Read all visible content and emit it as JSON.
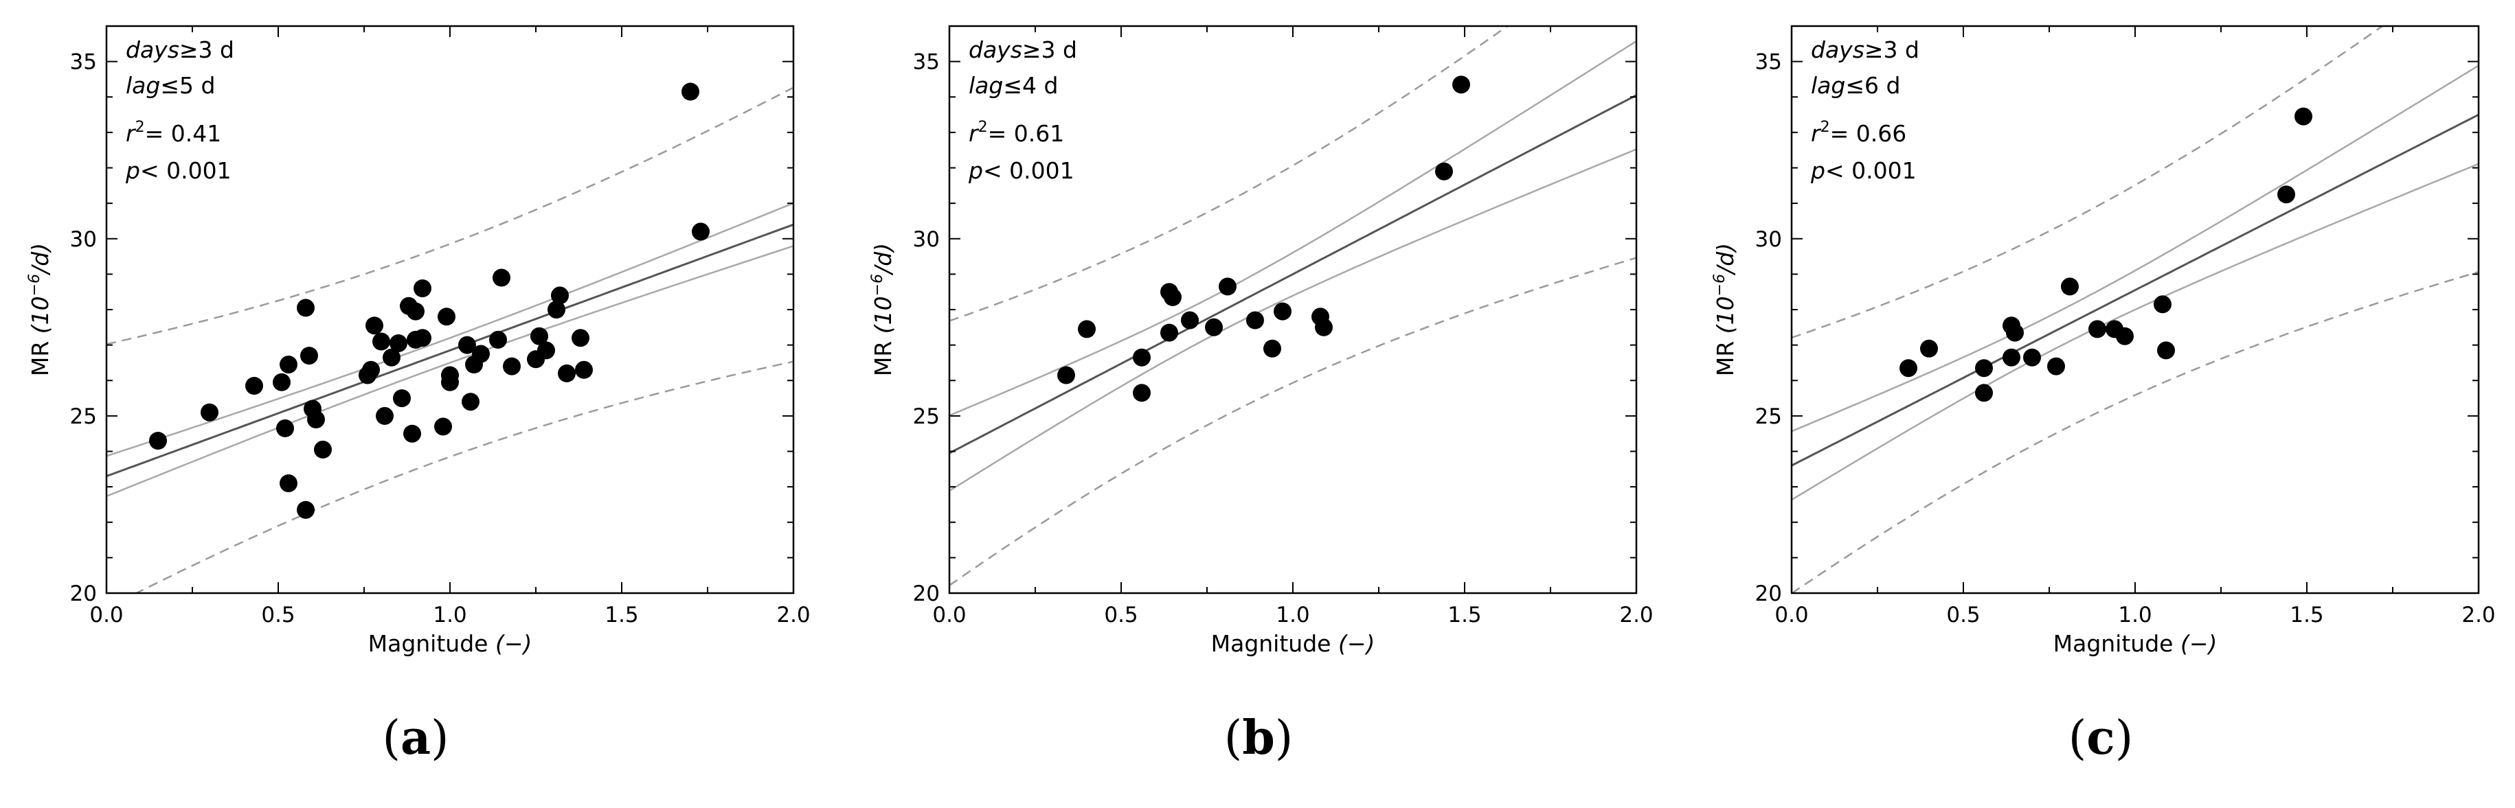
{
  "chart_data": [
    {
      "type": "scatter",
      "panel_label": "a",
      "xlabel": "Magnitude",
      "xlabel_unit": "(−)",
      "ylabel": "MR",
      "ylabel_unit": "(10",
      "ylabel_unit_exp": "−6",
      "ylabel_unit_end": "/d)",
      "xlim": [
        0.0,
        2.0
      ],
      "ylim": [
        20,
        36
      ],
      "xticks": [
        "0.0",
        "0.5",
        "1.0",
        "1.5",
        "2.0"
      ],
      "yticks": [
        "20",
        "25",
        "30",
        "35"
      ],
      "annotations": {
        "days_var": "days",
        "days_rel": "≥3 d",
        "lag_var": "lag",
        "lag_rel": "≤5 d",
        "r2_label": "r",
        "r2_exp": "2",
        "r2_value": "= 0.41",
        "p_text": "p< 0.001"
      },
      "fit": {
        "intercept": 23.3,
        "slope": 3.55,
        "x_mean": 0.95,
        "ci_half": 0.35,
        "ci_k": 1.8,
        "pi_half": 3.0,
        "pi_k": 0.6
      },
      "points": [
        [
          0.15,
          24.3
        ],
        [
          0.3,
          25.1
        ],
        [
          0.43,
          25.85
        ],
        [
          0.51,
          25.95
        ],
        [
          0.52,
          24.65
        ],
        [
          0.53,
          26.45
        ],
        [
          0.53,
          23.1
        ],
        [
          0.58,
          28.05
        ],
        [
          0.58,
          22.35
        ],
        [
          0.59,
          26.7
        ],
        [
          0.6,
          25.2
        ],
        [
          0.61,
          24.9
        ],
        [
          0.63,
          24.05
        ],
        [
          0.76,
          26.15
        ],
        [
          0.77,
          26.3
        ],
        [
          0.78,
          27.55
        ],
        [
          0.8,
          27.1
        ],
        [
          0.81,
          25.0
        ],
        [
          0.83,
          26.65
        ],
        [
          0.85,
          27.05
        ],
        [
          0.86,
          25.5
        ],
        [
          0.88,
          28.1
        ],
        [
          0.89,
          24.5
        ],
        [
          0.9,
          27.95
        ],
        [
          0.9,
          27.15
        ],
        [
          0.92,
          28.6
        ],
        [
          0.92,
          27.2
        ],
        [
          0.98,
          24.7
        ],
        [
          0.99,
          27.8
        ],
        [
          1.0,
          25.95
        ],
        [
          1.0,
          26.15
        ],
        [
          1.05,
          27.0
        ],
        [
          1.06,
          25.4
        ],
        [
          1.07,
          26.45
        ],
        [
          1.09,
          26.75
        ],
        [
          1.14,
          27.15
        ],
        [
          1.15,
          28.9
        ],
        [
          1.18,
          26.4
        ],
        [
          1.25,
          26.6
        ],
        [
          1.26,
          27.25
        ],
        [
          1.28,
          26.85
        ],
        [
          1.31,
          28.0
        ],
        [
          1.32,
          28.4
        ],
        [
          1.34,
          26.2
        ],
        [
          1.38,
          27.2
        ],
        [
          1.39,
          26.3
        ],
        [
          1.7,
          34.15
        ],
        [
          1.73,
          30.2
        ]
      ]
    },
    {
      "type": "scatter",
      "panel_label": "b",
      "xlabel": "Magnitude",
      "xlabel_unit": "(−)",
      "ylabel": "MR",
      "ylabel_unit": "(10",
      "ylabel_unit_exp": "−6",
      "ylabel_unit_end": "/d)",
      "xlim": [
        0.0,
        2.0
      ],
      "ylim": [
        20,
        36
      ],
      "xticks": [
        "0.0",
        "0.5",
        "1.0",
        "1.5",
        "2.0"
      ],
      "yticks": [
        "20",
        "25",
        "30",
        "35"
      ],
      "annotations": {
        "days_var": "days",
        "days_rel": "≥3 d",
        "lag_var": "lag",
        "lag_rel": "≤4 d",
        "r2_label": "r",
        "r2_exp": "2",
        "r2_value": "= 0.61",
        "p_text": "p< 0.001"
      },
      "fit": {
        "intercept": 23.95,
        "slope": 5.05,
        "x_mean": 0.78,
        "ci_half": 0.55,
        "ci_k": 4.5,
        "pi_half": 3.0,
        "pi_k": 0.9
      },
      "points": [
        [
          0.34,
          26.15
        ],
        [
          0.4,
          27.45
        ],
        [
          0.56,
          26.65
        ],
        [
          0.56,
          25.65
        ],
        [
          0.64,
          28.5
        ],
        [
          0.64,
          27.35
        ],
        [
          0.65,
          28.35
        ],
        [
          0.7,
          27.7
        ],
        [
          0.77,
          27.5
        ],
        [
          0.81,
          28.65
        ],
        [
          0.89,
          27.7
        ],
        [
          0.94,
          26.9
        ],
        [
          0.97,
          27.95
        ],
        [
          1.08,
          27.8
        ],
        [
          1.09,
          27.5
        ],
        [
          1.44,
          31.9
        ],
        [
          1.49,
          34.35
        ]
      ]
    },
    {
      "type": "scatter",
      "panel_label": "c",
      "xlabel": "Magnitude",
      "xlabel_unit": "(−)",
      "ylabel": "MR",
      "ylabel_unit": "(10",
      "ylabel_unit_exp": "−6",
      "ylabel_unit_end": "/d)",
      "xlim": [
        0.0,
        2.0
      ],
      "ylim": [
        20,
        36
      ],
      "xticks": [
        "0.0",
        "0.5",
        "1.0",
        "1.5",
        "2.0"
      ],
      "yticks": [
        "20",
        "25",
        "30",
        "35"
      ],
      "annotations": {
        "days_var": "days",
        "days_rel": "≥3 d",
        "lag_var": "lag",
        "lag_rel": "≤6 d",
        "r2_label": "r",
        "r2_exp": "2",
        "r2_value": "= 0.66",
        "p_text": "p< 0.001"
      },
      "fit": {
        "intercept": 23.6,
        "slope": 4.95,
        "x_mean": 0.78,
        "ci_half": 0.5,
        "ci_k": 4.5,
        "pi_half": 2.9,
        "pi_k": 0.9
      },
      "points": [
        [
          0.34,
          26.35
        ],
        [
          0.4,
          26.9
        ],
        [
          0.56,
          26.35
        ],
        [
          0.56,
          25.65
        ],
        [
          0.64,
          27.55
        ],
        [
          0.64,
          26.65
        ],
        [
          0.65,
          27.35
        ],
        [
          0.7,
          26.65
        ],
        [
          0.77,
          26.4
        ],
        [
          0.81,
          28.65
        ],
        [
          0.89,
          27.45
        ],
        [
          0.94,
          27.45
        ],
        [
          0.97,
          27.25
        ],
        [
          1.08,
          28.15
        ],
        [
          1.09,
          26.85
        ],
        [
          1.44,
          31.25
        ],
        [
          1.49,
          33.45
        ]
      ]
    }
  ],
  "captions": [
    {
      "open": "(",
      "letter": "a",
      "close": ")"
    },
    {
      "open": "(",
      "letter": "b",
      "close": ")"
    },
    {
      "open": "(",
      "letter": "c",
      "close": ")"
    }
  ]
}
